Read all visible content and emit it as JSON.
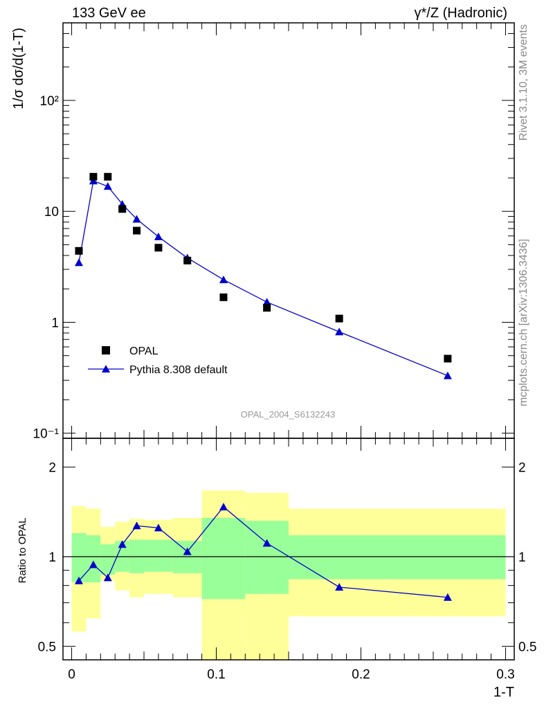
{
  "header": {
    "left_title": "133 GeV ee",
    "right_title": "γ*/Z (Hadronic)"
  },
  "side_labels": {
    "rivet": "Rivet 3.1.10,  3M events",
    "source": "mcplots.cern.ch [arXiv:1306.3436]"
  },
  "watermark": "OPAL_2004_S6132243",
  "colors": {
    "mc": "#0000cc",
    "data": "#000000",
    "band_inner": "#99ff99",
    "band_outer": "#ffff99"
  },
  "chart_data": [
    {
      "type": "line",
      "panel": "main",
      "ylabel": "1/σ dσ/d(1-T)",
      "xlabel": "",
      "yscale": "log",
      "xlim": [
        -0.006,
        0.306
      ],
      "ylim": [
        0.09,
        500
      ],
      "yticks": [
        {
          "v": 0.1,
          "label": "10⁻¹"
        },
        {
          "v": 1,
          "label": "1"
        },
        {
          "v": 10,
          "label": "10"
        },
        {
          "v": 100,
          "label": "10²"
        }
      ],
      "legend_placement": "lower-left",
      "series": [
        {
          "name": "OPAL",
          "marker": "square",
          "x": [
            0.005,
            0.015,
            0.025,
            0.035,
            0.045,
            0.06,
            0.08,
            0.105,
            0.135,
            0.185,
            0.26
          ],
          "y": [
            4.4,
            20.5,
            20.5,
            10.5,
            6.7,
            4.7,
            3.6,
            1.68,
            1.35,
            1.08,
            0.47
          ]
        },
        {
          "name": "Pythia 8.308 default",
          "marker": "triangle",
          "x": [
            0.005,
            0.015,
            0.025,
            0.035,
            0.045,
            0.06,
            0.08,
            0.105,
            0.135,
            0.185,
            0.26
          ],
          "y": [
            3.45,
            18.8,
            16.8,
            11.6,
            8.5,
            5.9,
            3.8,
            2.42,
            1.52,
            0.82,
            0.33
          ]
        }
      ]
    },
    {
      "type": "line",
      "panel": "ratio",
      "ylabel": "Ratio to OPAL",
      "xlabel": "1-T",
      "yscale": "log",
      "xlim": [
        -0.006,
        0.306
      ],
      "ylim": [
        0.45,
        2.5
      ],
      "yticks": [
        {
          "v": 0.5,
          "label": "0.5"
        },
        {
          "v": 1,
          "label": "1"
        },
        {
          "v": 2,
          "label": "2"
        }
      ],
      "xticks": [
        {
          "v": 0,
          "label": "0"
        },
        {
          "v": 0.1,
          "label": "0.1"
        },
        {
          "v": 0.2,
          "label": "0.2"
        },
        {
          "v": 0.3,
          "label": "0.3"
        }
      ],
      "reference_line": 1,
      "bands": [
        {
          "x0": 0.0,
          "x1": 0.01,
          "inner_lo": 0.82,
          "inner_hi": 1.2,
          "outer_lo": 0.56,
          "outer_hi": 1.48
        },
        {
          "x0": 0.01,
          "x1": 0.02,
          "inner_lo": 0.82,
          "inner_hi": 1.18,
          "outer_lo": 0.62,
          "outer_hi": 1.45
        },
        {
          "x0": 0.02,
          "x1": 0.03,
          "inner_lo": 0.87,
          "inner_hi": 1.1,
          "outer_lo": 0.83,
          "outer_hi": 1.26
        },
        {
          "x0": 0.03,
          "x1": 0.04,
          "inner_lo": 0.89,
          "inner_hi": 1.13,
          "outer_lo": 0.77,
          "outer_hi": 1.31
        },
        {
          "x0": 0.04,
          "x1": 0.05,
          "inner_lo": 0.88,
          "inner_hi": 1.14,
          "outer_lo": 0.73,
          "outer_hi": 1.34
        },
        {
          "x0": 0.05,
          "x1": 0.07,
          "inner_lo": 0.89,
          "inner_hi": 1.14,
          "outer_lo": 0.75,
          "outer_hi": 1.33
        },
        {
          "x0": 0.07,
          "x1": 0.09,
          "inner_lo": 0.88,
          "inner_hi": 1.13,
          "outer_lo": 0.73,
          "outer_hi": 1.35
        },
        {
          "x0": 0.09,
          "x1": 0.12,
          "inner_lo": 0.72,
          "inner_hi": 1.35,
          "outer_lo": 0.43,
          "outer_hi": 1.67
        },
        {
          "x0": 0.12,
          "x1": 0.15,
          "inner_lo": 0.75,
          "inner_hi": 1.32,
          "outer_lo": 0.36,
          "outer_hi": 1.64
        },
        {
          "x0": 0.15,
          "x1": 0.3,
          "inner_lo": 0.84,
          "inner_hi": 1.18,
          "outer_lo": 0.63,
          "outer_hi": 1.45
        }
      ],
      "series": [
        {
          "name": "Pythia 8.308 default",
          "marker": "triangle",
          "x": [
            0.005,
            0.015,
            0.025,
            0.035,
            0.045,
            0.06,
            0.08,
            0.105,
            0.135,
            0.185,
            0.26
          ],
          "y": [
            0.83,
            0.94,
            0.85,
            1.1,
            1.27,
            1.25,
            1.04,
            1.47,
            1.11,
            0.79,
            0.73
          ]
        }
      ]
    }
  ]
}
